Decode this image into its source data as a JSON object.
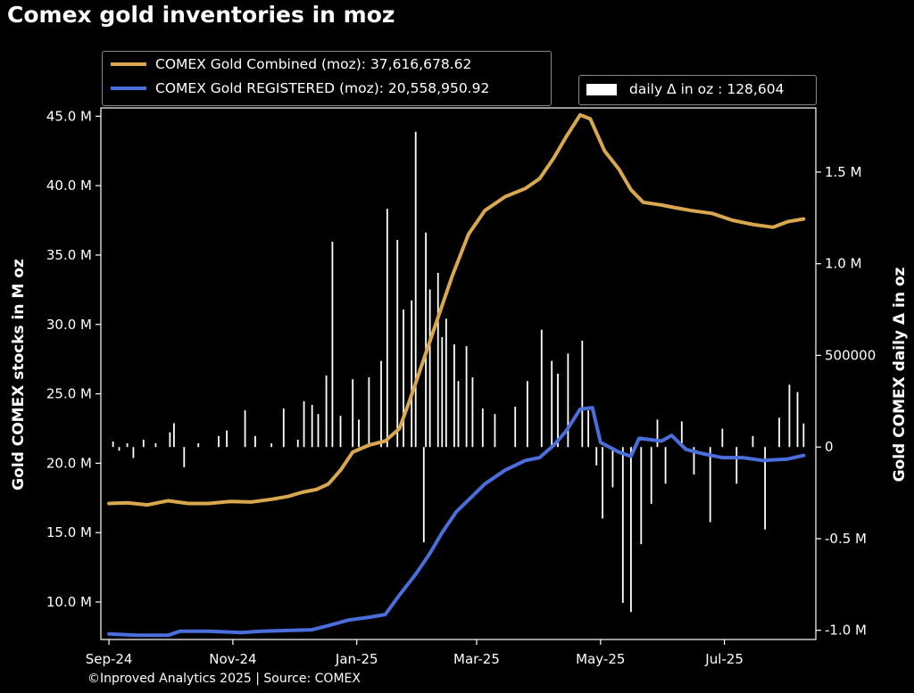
{
  "title": "Comex gold inventories in moz",
  "footer": "©Inproved Analytics 2025 | Source: COMEX",
  "colors": {
    "combined": "#d9a84e",
    "registered": "#4a6fdc",
    "bars": "#ffffff",
    "background": "#000000",
    "text": "#ffffff"
  },
  "legend": {
    "combined": "COMEX Gold Combined (moz): 37,616,678.62",
    "registered": "COMEX Gold REGISTERED (moz): 20,558,950.92",
    "daily": "daily Δ in oz : 128,604"
  },
  "chart_data": {
    "type": "line",
    "title": "Comex gold inventories in moz",
    "xlabel": "",
    "ylabel_left": "Gold COMEX stocks in M oz",
    "ylabel_right": "Gold COMEX daily Δ in oz",
    "x_ticks": [
      "Sep-24",
      "Nov-24",
      "Jan-25",
      "Mar-25",
      "May-25",
      "Jul-25"
    ],
    "y_left_ticks": [
      "10.0 M",
      "15.0 M",
      "20.0 M",
      "25.0 M",
      "30.0 M",
      "35.0 M",
      "40.0 M",
      "45.0 M"
    ],
    "y_left_range": [
      7.3,
      45.6
    ],
    "y_right_ticks": [
      "-1.0 M",
      "-0.5 M",
      "0",
      "500000",
      "1.0 M",
      "1.5 M"
    ],
    "y_right_range": [
      -1.05,
      1.85
    ],
    "grid": false,
    "legend_position": "top",
    "series": [
      {
        "name": "COMEX Gold Combined (moz)",
        "axis": "left",
        "points": [
          [
            "2024-09-01",
            17.1
          ],
          [
            "2024-09-10",
            17.15
          ],
          [
            "2024-09-20",
            17.0
          ],
          [
            "2024-09-30",
            17.3
          ],
          [
            "2024-10-10",
            17.1
          ],
          [
            "2024-10-20",
            17.1
          ],
          [
            "2024-10-31",
            17.25
          ],
          [
            "2024-11-10",
            17.2
          ],
          [
            "2024-11-20",
            17.4
          ],
          [
            "2024-11-28",
            17.6
          ],
          [
            "2024-12-05",
            17.9
          ],
          [
            "2024-12-12",
            18.1
          ],
          [
            "2024-12-18",
            18.5
          ],
          [
            "2024-12-24",
            19.5
          ],
          [
            "2024-12-30",
            20.8
          ],
          [
            "2025-01-07",
            21.3
          ],
          [
            "2025-01-15",
            21.6
          ],
          [
            "2025-01-22",
            22.5
          ],
          [
            "2025-01-27",
            24.5
          ],
          [
            "2025-02-03",
            27.5
          ],
          [
            "2025-02-10",
            30.5
          ],
          [
            "2025-02-17",
            33.5
          ],
          [
            "2025-02-25",
            36.5
          ],
          [
            "2025-03-05",
            38.2
          ],
          [
            "2025-03-15",
            39.2
          ],
          [
            "2025-03-25",
            39.8
          ],
          [
            "2025-04-01",
            40.5
          ],
          [
            "2025-04-08",
            42.0
          ],
          [
            "2025-04-14",
            43.5
          ],
          [
            "2025-04-21",
            45.1
          ],
          [
            "2025-04-26",
            44.8
          ],
          [
            "2025-05-03",
            42.5
          ],
          [
            "2025-05-10",
            41.2
          ],
          [
            "2025-05-16",
            39.7
          ],
          [
            "2025-05-22",
            38.8
          ],
          [
            "2025-05-31",
            38.6
          ],
          [
            "2025-06-07",
            38.4
          ],
          [
            "2025-06-15",
            38.2
          ],
          [
            "2025-06-25",
            38.0
          ],
          [
            "2025-07-05",
            37.5
          ],
          [
            "2025-07-15",
            37.2
          ],
          [
            "2025-07-25",
            37.0
          ],
          [
            "2025-08-01",
            37.4
          ],
          [
            "2025-08-09",
            37.6
          ]
        ]
      },
      {
        "name": "COMEX Gold REGISTERED (moz)",
        "axis": "left",
        "points": [
          [
            "2024-09-01",
            7.7
          ],
          [
            "2024-09-15",
            7.6
          ],
          [
            "2024-09-30",
            7.6
          ],
          [
            "2024-10-06",
            7.9
          ],
          [
            "2024-10-20",
            7.9
          ],
          [
            "2024-11-05",
            7.8
          ],
          [
            "2024-11-15",
            7.9
          ],
          [
            "2024-11-28",
            7.95
          ],
          [
            "2024-12-10",
            8.0
          ],
          [
            "2024-12-18",
            8.3
          ],
          [
            "2024-12-28",
            8.7
          ],
          [
            "2025-01-07",
            8.9
          ],
          [
            "2025-01-15",
            9.1
          ],
          [
            "2025-01-22",
            10.5
          ],
          [
            "2025-01-30",
            12.0
          ],
          [
            "2025-02-06",
            13.5
          ],
          [
            "2025-02-12",
            15.0
          ],
          [
            "2025-02-19",
            16.5
          ],
          [
            "2025-02-26",
            17.5
          ],
          [
            "2025-03-05",
            18.5
          ],
          [
            "2025-03-15",
            19.5
          ],
          [
            "2025-03-25",
            20.2
          ],
          [
            "2025-04-01",
            20.4
          ],
          [
            "2025-04-08",
            21.3
          ],
          [
            "2025-04-14",
            22.3
          ],
          [
            "2025-04-21",
            23.9
          ],
          [
            "2025-04-27",
            24.0
          ],
          [
            "2025-05-01",
            21.5
          ],
          [
            "2025-05-10",
            20.8
          ],
          [
            "2025-05-16",
            20.5
          ],
          [
            "2025-05-20",
            21.8
          ],
          [
            "2025-05-31",
            21.6
          ],
          [
            "2025-06-05",
            22.0
          ],
          [
            "2025-06-12",
            21.0
          ],
          [
            "2025-06-20",
            20.7
          ],
          [
            "2025-06-30",
            20.4
          ],
          [
            "2025-07-10",
            20.4
          ],
          [
            "2025-07-20",
            20.2
          ],
          [
            "2025-08-01",
            20.3
          ],
          [
            "2025-08-09",
            20.56
          ]
        ]
      },
      {
        "name": "daily Δ in oz",
        "axis": "right",
        "type": "bar",
        "points": [
          [
            "2024-09-03",
            30000
          ],
          [
            "2024-09-06",
            -20000
          ],
          [
            "2024-09-10",
            20000
          ],
          [
            "2024-09-13",
            -60000
          ],
          [
            "2024-09-18",
            40000
          ],
          [
            "2024-09-24",
            20000
          ],
          [
            "2024-10-01",
            80000
          ],
          [
            "2024-10-03",
            130000
          ],
          [
            "2024-10-08",
            -110000
          ],
          [
            "2024-10-15",
            20000
          ],
          [
            "2024-10-25",
            60000
          ],
          [
            "2024-10-29",
            90000
          ],
          [
            "2024-11-07",
            200000
          ],
          [
            "2024-11-12",
            60000
          ],
          [
            "2024-11-20",
            20000
          ],
          [
            "2024-11-26",
            210000
          ],
          [
            "2024-12-03",
            40000
          ],
          [
            "2024-12-06",
            250000
          ],
          [
            "2024-12-10",
            230000
          ],
          [
            "2024-12-13",
            180000
          ],
          [
            "2024-12-17",
            390000
          ],
          [
            "2024-12-20",
            1120000
          ],
          [
            "2024-12-24",
            170000
          ],
          [
            "2024-12-30",
            370000
          ],
          [
            "2025-01-02",
            150000
          ],
          [
            "2025-01-07",
            380000
          ],
          [
            "2025-01-13",
            470000
          ],
          [
            "2025-01-16",
            1300000
          ],
          [
            "2025-01-21",
            1130000
          ],
          [
            "2025-01-24",
            750000
          ],
          [
            "2025-01-28",
            800000
          ],
          [
            "2025-01-30",
            1720000
          ],
          [
            "2025-02-03",
            -520000
          ],
          [
            "2025-02-04",
            1170000
          ],
          [
            "2025-02-06",
            860000
          ],
          [
            "2025-02-10",
            950000
          ],
          [
            "2025-02-12",
            600000
          ],
          [
            "2025-02-14",
            700000
          ],
          [
            "2025-02-18",
            560000
          ],
          [
            "2025-02-20",
            360000
          ],
          [
            "2025-02-24",
            550000
          ],
          [
            "2025-02-27",
            380000
          ],
          [
            "2025-03-04",
            210000
          ],
          [
            "2025-03-10",
            180000
          ],
          [
            "2025-03-20",
            220000
          ],
          [
            "2025-03-26",
            360000
          ],
          [
            "2025-04-02",
            640000
          ],
          [
            "2025-04-07",
            470000
          ],
          [
            "2025-04-10",
            400000
          ],
          [
            "2025-04-15",
            510000
          ],
          [
            "2025-04-22",
            580000
          ],
          [
            "2025-04-25",
            200000
          ],
          [
            "2025-04-29",
            -100000
          ],
          [
            "2025-05-02",
            -390000
          ],
          [
            "2025-05-07",
            -220000
          ],
          [
            "2025-05-12",
            -850000
          ],
          [
            "2025-05-16",
            -900000
          ],
          [
            "2025-05-21",
            -530000
          ],
          [
            "2025-05-26",
            -310000
          ],
          [
            "2025-05-29",
            150000
          ],
          [
            "2025-06-02",
            -200000
          ],
          [
            "2025-06-10",
            140000
          ],
          [
            "2025-06-16",
            -150000
          ],
          [
            "2025-06-24",
            -410000
          ],
          [
            "2025-06-30",
            100000
          ],
          [
            "2025-07-07",
            -200000
          ],
          [
            "2025-07-15",
            60000
          ],
          [
            "2025-07-21",
            -450000
          ],
          [
            "2025-07-28",
            160000
          ],
          [
            "2025-08-02",
            340000
          ],
          [
            "2025-08-06",
            300000
          ],
          [
            "2025-08-09",
            128604
          ]
        ]
      }
    ]
  }
}
